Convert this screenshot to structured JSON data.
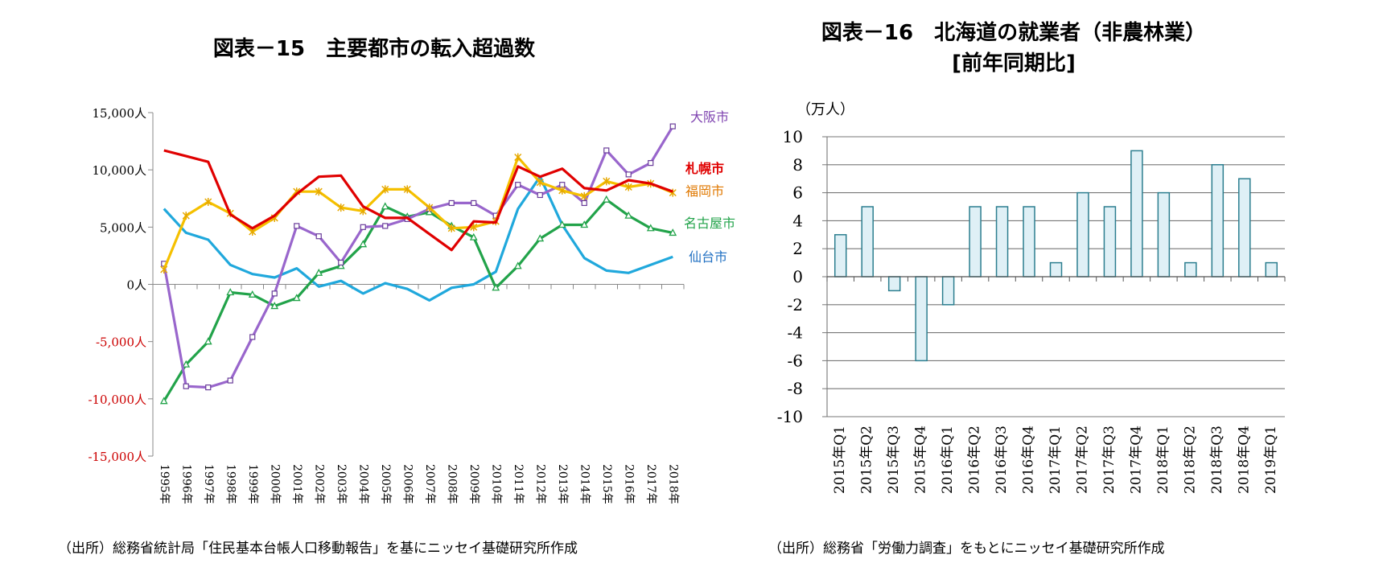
{
  "chart_data": [
    {
      "type": "line",
      "title": "図表－15　主要都市の転入超過数",
      "source": "（出所）総務省統計局「住民基本台帳人口移動報告」を基にニッセイ基礎研究所作成",
      "ylim": [
        -15000,
        15000
      ],
      "yticks": [
        {
          "value": 15000,
          "label": "15,000人"
        },
        {
          "value": 10000,
          "label": "10,000人"
        },
        {
          "value": 5000,
          "label": "5,000人"
        },
        {
          "value": 0,
          "label": "0人"
        },
        {
          "value": -5000,
          "label": "-5,000人"
        },
        {
          "value": -10000,
          "label": "-10,000人"
        },
        {
          "value": -15000,
          "label": "-15,000人"
        }
      ],
      "categories": [
        "1995年",
        "1996年",
        "1997年",
        "1998年",
        "1999年",
        "2000年",
        "2001年",
        "2002年",
        "2003年",
        "2004年",
        "2005年",
        "2006年",
        "2007年",
        "2008年",
        "2009年",
        "2010年",
        "2011年",
        "2012年",
        "2013年",
        "2014年",
        "2015年",
        "2016年",
        "2017年",
        "2018年"
      ],
      "series": [
        {
          "name": "大阪市",
          "color": "#9966cc",
          "marker": "square",
          "values": [
            1800,
            -8900,
            -9000,
            -8400,
            -4600,
            -800,
            5100,
            4200,
            1900,
            5000,
            5100,
            5700,
            6600,
            7100,
            7100,
            6000,
            8700,
            7800,
            8700,
            7100,
            11700,
            9600,
            10600,
            13800
          ]
        },
        {
          "name": "札幌市",
          "color": "#e00000",
          "marker": "none",
          "values": [
            11700,
            11200,
            10700,
            6100,
            4900,
            6000,
            7900,
            9400,
            9500,
            6800,
            5800,
            5800,
            4400,
            3000,
            5500,
            5400,
            10300,
            9400,
            10100,
            8400,
            8200,
            9100,
            8800,
            8100
          ]
        },
        {
          "name": "福岡市",
          "color": "#f5c000",
          "marker": "star",
          "values": [
            1300,
            6000,
            7200,
            6200,
            4600,
            5800,
            8100,
            8100,
            6700,
            6400,
            8300,
            8300,
            6700,
            4900,
            5000,
            5500,
            11100,
            8900,
            8200,
            7700,
            9000,
            8500,
            8800,
            8000
          ]
        },
        {
          "name": "名古屋市",
          "color": "#22a34a",
          "marker": "triangle",
          "values": [
            -10200,
            -7000,
            -5000,
            -700,
            -900,
            -1900,
            -1200,
            1000,
            1600,
            3500,
            6800,
            5900,
            6300,
            5100,
            4100,
            -300,
            1600,
            4000,
            5200,
            5200,
            7400,
            6000,
            4900,
            4500
          ]
        },
        {
          "name": "仙台市",
          "color": "#20a8dc",
          "marker": "none",
          "values": [
            6600,
            4500,
            3900,
            1700,
            900,
            600,
            1400,
            -200,
            300,
            -800,
            100,
            -400,
            -1400,
            -300,
            0,
            1100,
            6600,
            9400,
            5200,
            2300,
            1200,
            1000,
            1700,
            2400
          ]
        }
      ],
      "label_colors": {
        "大阪市": "#7f44b0",
        "札幌市": "#e00000",
        "福岡市": "#e07800",
        "名古屋市": "#22a34a",
        "仙台市": "#1f6fc2"
      }
    },
    {
      "type": "bar",
      "title": "図表－16　北海道の就業者（非農林業）",
      "subtitle": "[前年同期比]",
      "ylabel": "（万人）",
      "source": "（出所）総務省「労働力調査」をもとにニッセイ基礎研究所作成",
      "ylim": [
        -10,
        10
      ],
      "yticks": [
        10,
        8,
        6,
        4,
        2,
        0,
        -2,
        -4,
        -6,
        -8,
        -10
      ],
      "bar_fill": "#dff0f6",
      "bar_stroke": "#2c7e8f",
      "categories": [
        "2015年Q1",
        "2015年Q2",
        "2015年Q3",
        "2015年Q4",
        "2016年Q1",
        "2016年Q2",
        "2016年Q3",
        "2016年Q4",
        "2017年Q1",
        "2017年Q2",
        "2017年Q3",
        "2017年Q4",
        "2018年Q1",
        "2018年Q2",
        "2018年Q3",
        "2018年Q4",
        "2019年Q1"
      ],
      "values": [
        3,
        5,
        -1,
        -6,
        -2,
        5,
        5,
        5,
        1,
        6,
        5,
        9,
        6,
        1,
        8,
        7,
        1
      ]
    }
  ]
}
